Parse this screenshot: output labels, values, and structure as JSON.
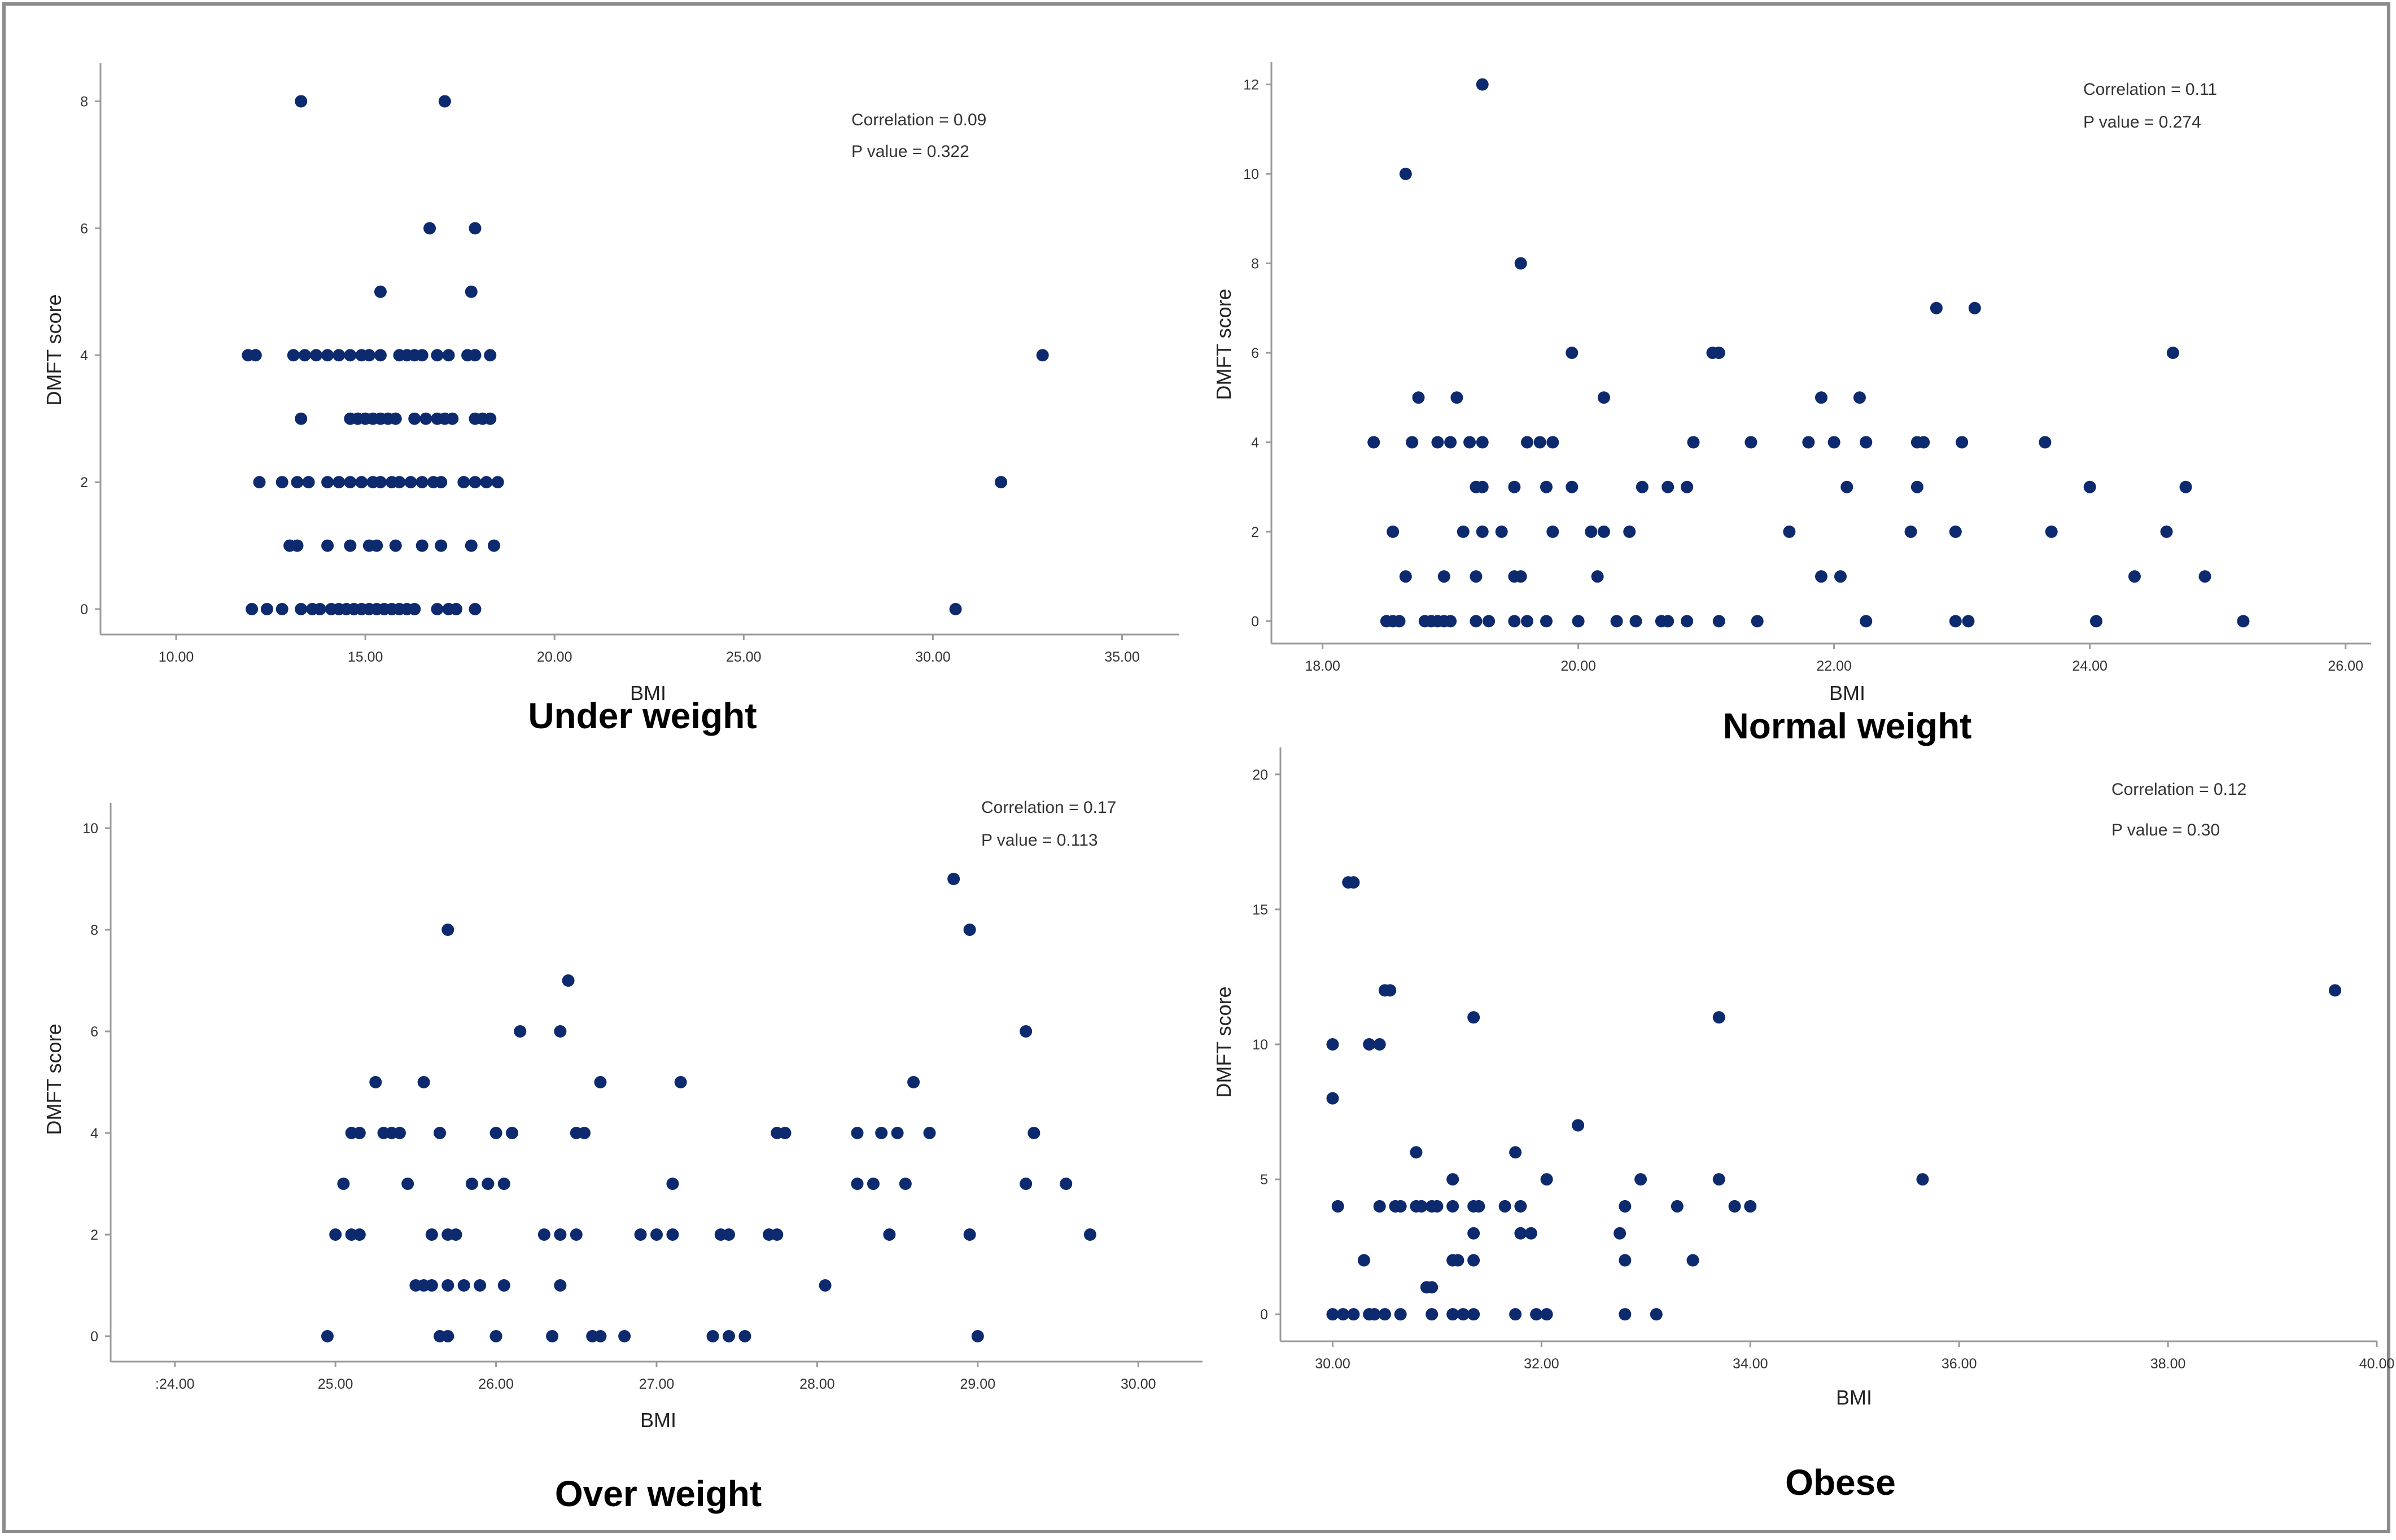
{
  "figure_panels": [
    "Under weight",
    "Normal weight",
    "Over weight",
    "Obese"
  ],
  "colors": {
    "point": "#0d2a6e",
    "axis": "#9a9a9a",
    "frame": "#8c8c8c",
    "text": "#333333"
  },
  "chart_data": [
    {
      "type": "scatter",
      "caption": "Under weight",
      "xlabel": "BMI",
      "ylabel": "DMFT score",
      "xlim": [
        8,
        36.5
      ],
      "ylim": [
        -0.4,
        8.6
      ],
      "xticks": [
        10,
        15,
        20,
        25,
        30,
        35
      ],
      "xtick_labels": [
        "10.00",
        "15.00",
        "20.00",
        "25.00",
        "30.00",
        "35.00"
      ],
      "yticks": [
        0,
        2,
        4,
        6,
        8
      ],
      "ytick_labels": [
        "0",
        "2",
        "4",
        "6",
        "8"
      ],
      "annotations": [
        "Correlation = 0.09",
        "P value = 0.322"
      ],
      "points": [
        [
          13.3,
          8
        ],
        [
          17.1,
          8
        ],
        [
          16.7,
          6
        ],
        [
          17.9,
          6
        ],
        [
          15.4,
          5
        ],
        [
          17.8,
          5
        ],
        [
          11.9,
          4
        ],
        [
          12.1,
          4
        ],
        [
          13.1,
          4
        ],
        [
          13.4,
          4
        ],
        [
          13.7,
          4
        ],
        [
          14.0,
          4
        ],
        [
          14.3,
          4
        ],
        [
          14.6,
          4
        ],
        [
          14.9,
          4
        ],
        [
          15.1,
          4
        ],
        [
          15.4,
          4
        ],
        [
          15.9,
          4
        ],
        [
          16.1,
          4
        ],
        [
          16.3,
          4
        ],
        [
          16.5,
          4
        ],
        [
          16.9,
          4
        ],
        [
          17.2,
          4
        ],
        [
          17.7,
          4
        ],
        [
          17.9,
          4
        ],
        [
          18.3,
          4
        ],
        [
          32.9,
          4
        ],
        [
          13.3,
          3
        ],
        [
          14.6,
          3
        ],
        [
          14.8,
          3
        ],
        [
          15.0,
          3
        ],
        [
          15.2,
          3
        ],
        [
          15.4,
          3
        ],
        [
          15.6,
          3
        ],
        [
          15.8,
          3
        ],
        [
          16.3,
          3
        ],
        [
          16.6,
          3
        ],
        [
          16.9,
          3
        ],
        [
          17.1,
          3
        ],
        [
          17.3,
          3
        ],
        [
          17.9,
          3
        ],
        [
          18.1,
          3
        ],
        [
          18.3,
          3
        ],
        [
          12.2,
          2
        ],
        [
          12.8,
          2
        ],
        [
          13.2,
          2
        ],
        [
          13.5,
          2
        ],
        [
          14.0,
          2
        ],
        [
          14.3,
          2
        ],
        [
          14.6,
          2
        ],
        [
          14.9,
          2
        ],
        [
          15.2,
          2
        ],
        [
          15.4,
          2
        ],
        [
          15.7,
          2
        ],
        [
          15.9,
          2
        ],
        [
          16.2,
          2
        ],
        [
          16.5,
          2
        ],
        [
          16.8,
          2
        ],
        [
          17.0,
          2
        ],
        [
          17.6,
          2
        ],
        [
          17.9,
          2
        ],
        [
          18.2,
          2
        ],
        [
          18.5,
          2
        ],
        [
          31.8,
          2
        ],
        [
          13.0,
          1
        ],
        [
          13.2,
          1
        ],
        [
          14.0,
          1
        ],
        [
          14.6,
          1
        ],
        [
          15.1,
          1
        ],
        [
          15.3,
          1
        ],
        [
          15.8,
          1
        ],
        [
          16.5,
          1
        ],
        [
          17.0,
          1
        ],
        [
          17.8,
          1
        ],
        [
          18.4,
          1
        ],
        [
          12.0,
          0
        ],
        [
          12.4,
          0
        ],
        [
          12.8,
          0
        ],
        [
          13.3,
          0
        ],
        [
          13.6,
          0
        ],
        [
          13.8,
          0
        ],
        [
          14.1,
          0
        ],
        [
          14.3,
          0
        ],
        [
          14.5,
          0
        ],
        [
          14.7,
          0
        ],
        [
          14.9,
          0
        ],
        [
          15.1,
          0
        ],
        [
          15.3,
          0
        ],
        [
          15.5,
          0
        ],
        [
          15.7,
          0
        ],
        [
          15.9,
          0
        ],
        [
          16.1,
          0
        ],
        [
          16.3,
          0
        ],
        [
          16.9,
          0
        ],
        [
          17.2,
          0
        ],
        [
          17.4,
          0
        ],
        [
          17.9,
          0
        ],
        [
          30.6,
          0
        ]
      ]
    },
    {
      "type": "scatter",
      "caption": "Normal weight",
      "xlabel": "BMI",
      "ylabel": "DMFT score",
      "xlim": [
        17.6,
        26.2
      ],
      "ylim": [
        -0.5,
        12.5
      ],
      "xticks": [
        18,
        20,
        22,
        24,
        26
      ],
      "xtick_labels": [
        "18.00",
        "20.00",
        "22.00",
        "24.00",
        "26.00"
      ],
      "yticks": [
        0,
        2,
        4,
        6,
        8,
        10,
        12
      ],
      "ytick_labels": [
        "0",
        "2",
        "4",
        "6",
        "8",
        "10",
        "12"
      ],
      "annotations": [
        "Correlation = 0.11",
        "P value = 0.274"
      ],
      "points": [
        [
          19.25,
          12
        ],
        [
          18.65,
          10
        ],
        [
          19.55,
          8
        ],
        [
          19.95,
          6
        ],
        [
          21.05,
          6
        ],
        [
          21.1,
          6
        ],
        [
          22.8,
          7
        ],
        [
          23.1,
          7
        ],
        [
          24.65,
          6
        ],
        [
          18.75,
          5
        ],
        [
          19.05,
          5
        ],
        [
          20.2,
          5
        ],
        [
          21.9,
          5
        ],
        [
          22.2,
          5
        ],
        [
          18.4,
          4
        ],
        [
          18.7,
          4
        ],
        [
          18.9,
          4
        ],
        [
          19.0,
          4
        ],
        [
          19.15,
          4
        ],
        [
          19.25,
          4
        ],
        [
          19.6,
          4
        ],
        [
          19.7,
          4
        ],
        [
          19.8,
          4
        ],
        [
          20.9,
          4
        ],
        [
          21.35,
          4
        ],
        [
          21.8,
          4
        ],
        [
          22.0,
          4
        ],
        [
          22.25,
          4
        ],
        [
          22.65,
          4
        ],
        [
          22.7,
          4
        ],
        [
          23.0,
          4
        ],
        [
          23.65,
          4
        ],
        [
          19.2,
          3
        ],
        [
          19.25,
          3
        ],
        [
          19.5,
          3
        ],
        [
          19.75,
          3
        ],
        [
          19.95,
          3
        ],
        [
          20.5,
          3
        ],
        [
          20.7,
          3
        ],
        [
          20.85,
          3
        ],
        [
          22.1,
          3
        ],
        [
          22.65,
          3
        ],
        [
          24.0,
          3
        ],
        [
          24.75,
          3
        ],
        [
          18.55,
          2
        ],
        [
          19.1,
          2
        ],
        [
          19.25,
          2
        ],
        [
          19.4,
          2
        ],
        [
          19.8,
          2
        ],
        [
          20.1,
          2
        ],
        [
          20.2,
          2
        ],
        [
          20.4,
          2
        ],
        [
          21.65,
          2
        ],
        [
          22.6,
          2
        ],
        [
          22.95,
          2
        ],
        [
          23.7,
          2
        ],
        [
          24.6,
          2
        ],
        [
          18.65,
          1
        ],
        [
          18.95,
          1
        ],
        [
          19.2,
          1
        ],
        [
          19.5,
          1
        ],
        [
          19.55,
          1
        ],
        [
          20.15,
          1
        ],
        [
          21.9,
          1
        ],
        [
          22.05,
          1
        ],
        [
          24.35,
          1
        ],
        [
          24.9,
          1
        ],
        [
          18.5,
          0
        ],
        [
          18.55,
          0
        ],
        [
          18.6,
          0
        ],
        [
          18.8,
          0
        ],
        [
          18.85,
          0
        ],
        [
          18.9,
          0
        ],
        [
          18.95,
          0
        ],
        [
          19.0,
          0
        ],
        [
          19.2,
          0
        ],
        [
          19.3,
          0
        ],
        [
          19.5,
          0
        ],
        [
          19.6,
          0
        ],
        [
          19.75,
          0
        ],
        [
          20.0,
          0
        ],
        [
          20.3,
          0
        ],
        [
          20.45,
          0
        ],
        [
          20.65,
          0
        ],
        [
          20.7,
          0
        ],
        [
          20.85,
          0
        ],
        [
          21.1,
          0
        ],
        [
          21.4,
          0
        ],
        [
          22.25,
          0
        ],
        [
          22.95,
          0
        ],
        [
          23.05,
          0
        ],
        [
          24.05,
          0
        ],
        [
          25.2,
          0
        ]
      ]
    },
    {
      "type": "scatter",
      "caption": "Over weight",
      "xlabel": "BMI",
      "ylabel": "DMFT score",
      "xlim": [
        23.6,
        30.4
      ],
      "ylim": [
        -0.5,
        10.5
      ],
      "xticks": [
        24,
        25,
        26,
        27,
        28,
        29,
        30
      ],
      "xtick_labels": [
        ":24.00",
        "25.00",
        "26.00",
        "27.00",
        "28.00",
        "29.00",
        "30.00"
      ],
      "yticks": [
        0,
        2,
        4,
        6,
        8,
        10
      ],
      "ytick_labels": [
        "0",
        "2",
        "4",
        "6",
        "8",
        "10"
      ],
      "annotations": [
        "Correlation = 0.17",
        "P value = 0.113"
      ],
      "points": [
        [
          28.85,
          9
        ],
        [
          25.7,
          8
        ],
        [
          28.95,
          8
        ],
        [
          26.45,
          7
        ],
        [
          26.15,
          6
        ],
        [
          26.4,
          6
        ],
        [
          29.3,
          6
        ],
        [
          25.25,
          5
        ],
        [
          25.55,
          5
        ],
        [
          26.65,
          5
        ],
        [
          27.15,
          5
        ],
        [
          28.6,
          5
        ],
        [
          25.1,
          4
        ],
        [
          25.15,
          4
        ],
        [
          25.3,
          4
        ],
        [
          25.35,
          4
        ],
        [
          25.4,
          4
        ],
        [
          25.65,
          4
        ],
        [
          26.0,
          4
        ],
        [
          26.1,
          4
        ],
        [
          26.5,
          4
        ],
        [
          26.55,
          4
        ],
        [
          27.75,
          4
        ],
        [
          27.8,
          4
        ],
        [
          28.25,
          4
        ],
        [
          28.4,
          4
        ],
        [
          28.5,
          4
        ],
        [
          28.7,
          4
        ],
        [
          29.35,
          4
        ],
        [
          25.05,
          3
        ],
        [
          25.45,
          3
        ],
        [
          25.85,
          3
        ],
        [
          25.95,
          3
        ],
        [
          26.05,
          3
        ],
        [
          27.1,
          3
        ],
        [
          28.25,
          3
        ],
        [
          28.35,
          3
        ],
        [
          28.55,
          3
        ],
        [
          29.3,
          3
        ],
        [
          29.55,
          3
        ],
        [
          25.0,
          2
        ],
        [
          25.1,
          2
        ],
        [
          25.15,
          2
        ],
        [
          25.6,
          2
        ],
        [
          25.7,
          2
        ],
        [
          25.75,
          2
        ],
        [
          26.3,
          2
        ],
        [
          26.4,
          2
        ],
        [
          26.5,
          2
        ],
        [
          26.9,
          2
        ],
        [
          27.0,
          2
        ],
        [
          27.1,
          2
        ],
        [
          27.4,
          2
        ],
        [
          27.45,
          2
        ],
        [
          27.7,
          2
        ],
        [
          27.75,
          2
        ],
        [
          28.45,
          2
        ],
        [
          28.95,
          2
        ],
        [
          29.7,
          2
        ],
        [
          25.5,
          1
        ],
        [
          25.55,
          1
        ],
        [
          25.6,
          1
        ],
        [
          25.7,
          1
        ],
        [
          25.8,
          1
        ],
        [
          25.9,
          1
        ],
        [
          26.05,
          1
        ],
        [
          26.4,
          1
        ],
        [
          28.05,
          1
        ],
        [
          24.95,
          0
        ],
        [
          25.65,
          0
        ],
        [
          25.7,
          0
        ],
        [
          26.0,
          0
        ],
        [
          26.35,
          0
        ],
        [
          26.6,
          0
        ],
        [
          26.65,
          0
        ],
        [
          26.8,
          0
        ],
        [
          27.35,
          0
        ],
        [
          27.45,
          0
        ],
        [
          27.55,
          0
        ],
        [
          29.0,
          0
        ]
      ]
    },
    {
      "type": "scatter",
      "caption": "Obese",
      "xlabel": "BMI",
      "ylabel": "DMFT score",
      "xlim": [
        29.5,
        40.0
      ],
      "ylim": [
        -1,
        21
      ],
      "xticks": [
        30,
        32,
        34,
        36,
        38,
        40
      ],
      "xtick_labels": [
        "30.00",
        "32.00",
        "34.00",
        "36.00",
        "38.00",
        "40.00"
      ],
      "yticks": [
        0,
        5,
        10,
        15,
        20
      ],
      "ytick_labels": [
        "0",
        "5",
        "10",
        "15",
        "20"
      ],
      "annotations": [
        "Correlation = 0.12",
        "P value = 0.30"
      ],
      "points": [
        [
          30.2,
          16
        ],
        [
          30.15,
          16
        ],
        [
          30.5,
          12
        ],
        [
          30.55,
          12
        ],
        [
          39.6,
          12
        ],
        [
          31.35,
          11
        ],
        [
          33.7,
          11
        ],
        [
          30.0,
          10
        ],
        [
          30.35,
          10
        ],
        [
          30.45,
          10
        ],
        [
          30.0,
          8
        ],
        [
          32.35,
          7
        ],
        [
          30.8,
          6
        ],
        [
          31.75,
          6
        ],
        [
          31.15,
          5
        ],
        [
          32.05,
          5
        ],
        [
          32.95,
          5
        ],
        [
          33.7,
          5
        ],
        [
          35.65,
          5
        ],
        [
          30.05,
          4
        ],
        [
          30.45,
          4
        ],
        [
          30.6,
          4
        ],
        [
          30.65,
          4
        ],
        [
          30.8,
          4
        ],
        [
          30.85,
          4
        ],
        [
          30.95,
          4
        ],
        [
          31.0,
          4
        ],
        [
          31.15,
          4
        ],
        [
          31.35,
          4
        ],
        [
          31.4,
          4
        ],
        [
          31.65,
          4
        ],
        [
          31.8,
          4
        ],
        [
          32.8,
          4
        ],
        [
          33.3,
          4
        ],
        [
          33.85,
          4
        ],
        [
          34.0,
          4
        ],
        [
          31.35,
          3
        ],
        [
          31.8,
          3
        ],
        [
          31.9,
          3
        ],
        [
          32.75,
          3
        ],
        [
          30.3,
          2
        ],
        [
          31.15,
          2
        ],
        [
          31.2,
          2
        ],
        [
          31.35,
          2
        ],
        [
          32.8,
          2
        ],
        [
          33.45,
          2
        ],
        [
          30.9,
          1
        ],
        [
          30.95,
          1
        ],
        [
          30.0,
          0
        ],
        [
          30.1,
          0
        ],
        [
          30.2,
          0
        ],
        [
          30.35,
          0
        ],
        [
          30.4,
          0
        ],
        [
          30.5,
          0
        ],
        [
          30.65,
          0
        ],
        [
          30.95,
          0
        ],
        [
          31.15,
          0
        ],
        [
          31.25,
          0
        ],
        [
          31.35,
          0
        ],
        [
          31.75,
          0
        ],
        [
          31.95,
          0
        ],
        [
          32.05,
          0
        ],
        [
          32.8,
          0
        ],
        [
          33.1,
          0
        ]
      ]
    }
  ]
}
